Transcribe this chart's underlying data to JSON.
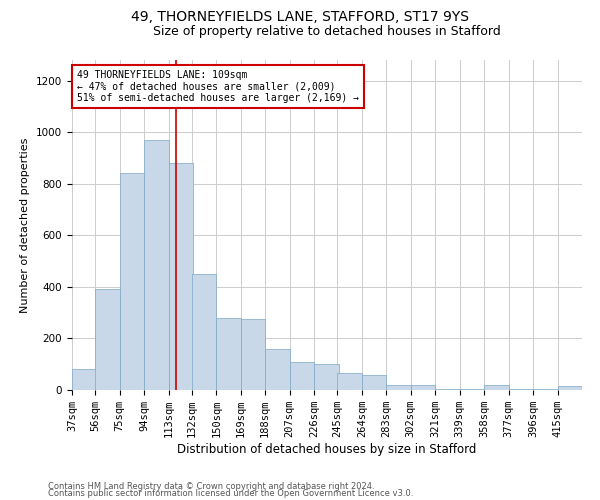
{
  "title1": "49, THORNEYFIELDS LANE, STAFFORD, ST17 9YS",
  "title2": "Size of property relative to detached houses in Stafford",
  "xlabel": "Distribution of detached houses by size in Stafford",
  "ylabel": "Number of detached properties",
  "footer1": "Contains HM Land Registry data © Crown copyright and database right 2024.",
  "footer2": "Contains public sector information licensed under the Open Government Licence v3.0.",
  "annotation_line1": "49 THORNEYFIELDS LANE: 109sqm",
  "annotation_line2": "← 47% of detached houses are smaller (2,009)",
  "annotation_line3": "51% of semi-detached houses are larger (2,169) →",
  "property_size": 109,
  "bar_color": "#c8d8e8",
  "bar_edge_color": "#7ba7c7",
  "red_line_color": "#cc0000",
  "annotation_box_color": "#cc0000",
  "background_color": "#ffffff",
  "grid_color": "#cccccc",
  "categories": [
    "37sqm",
    "56sqm",
    "75sqm",
    "94sqm",
    "113sqm",
    "132sqm",
    "150sqm",
    "169sqm",
    "188sqm",
    "207sqm",
    "226sqm",
    "245sqm",
    "264sqm",
    "283sqm",
    "302sqm",
    "321sqm",
    "339sqm",
    "358sqm",
    "377sqm",
    "396sqm",
    "415sqm"
  ],
  "bin_left_edges": [
    28,
    46,
    65,
    84,
    103,
    121,
    140,
    159,
    178,
    197,
    216,
    234,
    253,
    272,
    291,
    310,
    329,
    348,
    367,
    386,
    405
  ],
  "bin_width": 19,
  "values": [
    80,
    390,
    840,
    970,
    880,
    450,
    280,
    275,
    160,
    110,
    100,
    65,
    60,
    20,
    20,
    5,
    5,
    20,
    5,
    5,
    15
  ],
  "xlim": [
    28,
    424
  ],
  "ylim": [
    0,
    1280
  ],
  "yticks": [
    0,
    200,
    400,
    600,
    800,
    1000,
    1200
  ],
  "title1_fontsize": 10,
  "title2_fontsize": 9,
  "xlabel_fontsize": 8.5,
  "ylabel_fontsize": 8,
  "tick_fontsize": 7.5,
  "footer_fontsize": 6,
  "annot_fontsize": 7
}
